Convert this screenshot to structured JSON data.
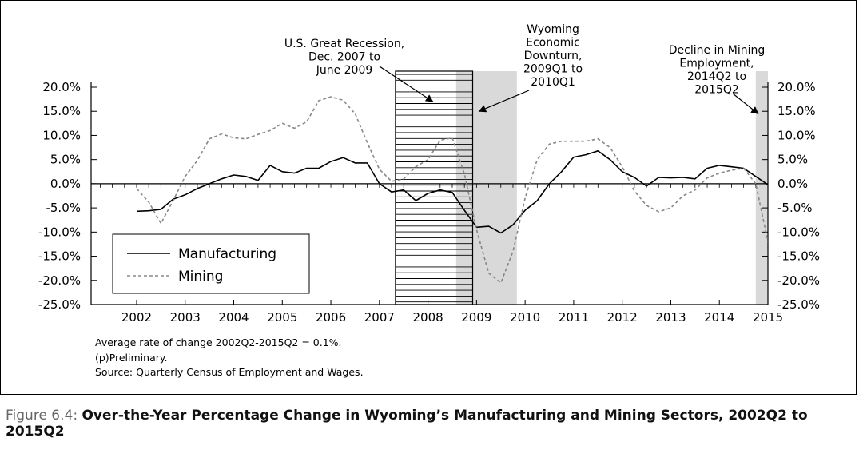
{
  "figure": {
    "label": "Figure 6.4:",
    "title": "Over-the-Year Percentage Change in Wyoming’s Manufacturing and Mining Sectors, 2002Q2 to 2015Q2"
  },
  "notes": [
    "Average rate of change 2002Q2-2015Q2 = 0.1%.",
    "(p)Preliminary.",
    "Source: Quarterly Census of Employment and Wages."
  ],
  "chart_data": {
    "type": "line",
    "x_ticks": [
      "2002",
      "2003",
      "2004",
      "2005",
      "2006",
      "2007",
      "2008",
      "2009",
      "2010",
      "2011",
      "2012",
      "2013",
      "2014",
      "2015"
    ],
    "y_ticks": [
      "20.0%",
      "15.0%",
      "10.0%",
      "5.0%",
      "0.0%",
      "-5.0%",
      "-10.0%",
      "-15.0%",
      "-20.0%",
      "-25.0%"
    ],
    "ylim": [
      -25,
      20
    ],
    "grid": false,
    "legend_position": "lower-left",
    "series": [
      {
        "name": "Manufacturing",
        "style": "solid",
        "color": "#000000",
        "points": [
          [
            2002.0,
            -5.7
          ],
          [
            2002.25,
            -5.6
          ],
          [
            2002.5,
            -5.3
          ],
          [
            2002.75,
            -3.2
          ],
          [
            2003.0,
            -2.3
          ],
          [
            2003.25,
            -1.0
          ],
          [
            2003.5,
            0.0
          ],
          [
            2003.75,
            1.0
          ],
          [
            2004.0,
            1.8
          ],
          [
            2004.25,
            1.5
          ],
          [
            2004.5,
            0.7
          ],
          [
            2004.75,
            3.8
          ],
          [
            2005.0,
            2.5
          ],
          [
            2005.25,
            2.2
          ],
          [
            2005.5,
            3.2
          ],
          [
            2005.75,
            3.2
          ],
          [
            2006.0,
            4.6
          ],
          [
            2006.25,
            5.4
          ],
          [
            2006.5,
            4.3
          ],
          [
            2006.75,
            4.3
          ],
          [
            2007.0,
            0.0
          ],
          [
            2007.25,
            -1.7
          ],
          [
            2007.5,
            -1.3
          ],
          [
            2007.75,
            -3.5
          ],
          [
            2008.0,
            -2.0
          ],
          [
            2008.25,
            -1.3
          ],
          [
            2008.5,
            -1.8
          ],
          [
            2008.75,
            -5.5
          ],
          [
            2009.0,
            -9.0
          ],
          [
            2009.25,
            -8.8
          ],
          [
            2009.5,
            -10.2
          ],
          [
            2009.75,
            -8.5
          ],
          [
            2010.0,
            -5.5
          ],
          [
            2010.25,
            -3.5
          ],
          [
            2010.5,
            0.0
          ],
          [
            2010.75,
            2.5
          ],
          [
            2011.0,
            5.5
          ],
          [
            2011.25,
            6.0
          ],
          [
            2011.5,
            6.8
          ],
          [
            2011.75,
            5.0
          ],
          [
            2012.0,
            2.5
          ],
          [
            2012.25,
            1.3
          ],
          [
            2012.5,
            -0.5
          ],
          [
            2012.75,
            1.3
          ],
          [
            2013.0,
            1.2
          ],
          [
            2013.25,
            1.3
          ],
          [
            2013.5,
            1.0
          ],
          [
            2013.75,
            3.2
          ],
          [
            2014.0,
            3.8
          ],
          [
            2014.25,
            3.5
          ],
          [
            2014.5,
            3.2
          ],
          [
            2014.75,
            1.5
          ],
          [
            2015.0,
            -0.2
          ]
        ]
      },
      {
        "name": "Mining",
        "style": "dashed",
        "color": "#888888",
        "points": [
          [
            2002.0,
            -1.0
          ],
          [
            2002.25,
            -3.8
          ],
          [
            2002.5,
            -8.2
          ],
          [
            2002.75,
            -3.5
          ],
          [
            2003.0,
            1.5
          ],
          [
            2003.25,
            4.8
          ],
          [
            2003.5,
            9.3
          ],
          [
            2003.75,
            10.3
          ],
          [
            2004.0,
            9.5
          ],
          [
            2004.25,
            9.3
          ],
          [
            2004.5,
            10.2
          ],
          [
            2004.75,
            11.0
          ],
          [
            2005.0,
            12.5
          ],
          [
            2005.25,
            11.5
          ],
          [
            2005.5,
            12.8
          ],
          [
            2005.75,
            17.2
          ],
          [
            2006.0,
            18.0
          ],
          [
            2006.25,
            17.3
          ],
          [
            2006.5,
            14.5
          ],
          [
            2006.75,
            8.5
          ],
          [
            2007.0,
            3.0
          ],
          [
            2007.25,
            0.5
          ],
          [
            2007.5,
            1.0
          ],
          [
            2007.75,
            3.5
          ],
          [
            2008.0,
            5.0
          ],
          [
            2008.25,
            9.0
          ],
          [
            2008.5,
            9.5
          ],
          [
            2008.75,
            2.0
          ],
          [
            2009.0,
            -9.5
          ],
          [
            2009.25,
            -18.5
          ],
          [
            2009.5,
            -20.5
          ],
          [
            2009.75,
            -14.0
          ],
          [
            2010.0,
            -3.0
          ],
          [
            2010.25,
            5.0
          ],
          [
            2010.5,
            8.2
          ],
          [
            2010.75,
            8.8
          ],
          [
            2011.0,
            8.8
          ],
          [
            2011.25,
            8.8
          ],
          [
            2011.5,
            9.3
          ],
          [
            2011.75,
            7.5
          ],
          [
            2012.0,
            3.5
          ],
          [
            2012.25,
            -1.5
          ],
          [
            2012.5,
            -4.5
          ],
          [
            2012.75,
            -5.8
          ],
          [
            2013.0,
            -5.0
          ],
          [
            2013.25,
            -2.5
          ],
          [
            2013.5,
            -1.3
          ],
          [
            2013.75,
            1.2
          ],
          [
            2014.0,
            2.2
          ],
          [
            2014.25,
            2.8
          ],
          [
            2014.5,
            3.2
          ],
          [
            2014.75,
            0.0
          ],
          [
            2015.0,
            -12.0
          ]
        ]
      }
    ],
    "shaded_periods": [
      {
        "from": 2007.33,
        "to": 2008.92,
        "style": "hatched"
      },
      {
        "from": 2008.58,
        "to": 2009.83,
        "style": "gray"
      },
      {
        "from": 2014.75,
        "to": 2015.0,
        "style": "gray"
      }
    ],
    "annotations": [
      {
        "lines": [
          "U.S. Great Recession,",
          "Dec. 2007 to",
          "June 2009"
        ],
        "points_to_x": 2008.1,
        "points_to_y": 17.0
      },
      {
        "lines": [
          "Wyoming",
          "Economic",
          "Downturn,",
          "2009Q1 to",
          "2010Q1"
        ],
        "points_to_x": 2009.05,
        "points_to_y": 15.0
      },
      {
        "lines": [
          "Decline in Mining",
          "Employment,",
          "2014Q2 to",
          "2015Q2"
        ],
        "points_to_x": 2014.8,
        "points_to_y": 14.5
      }
    ]
  }
}
